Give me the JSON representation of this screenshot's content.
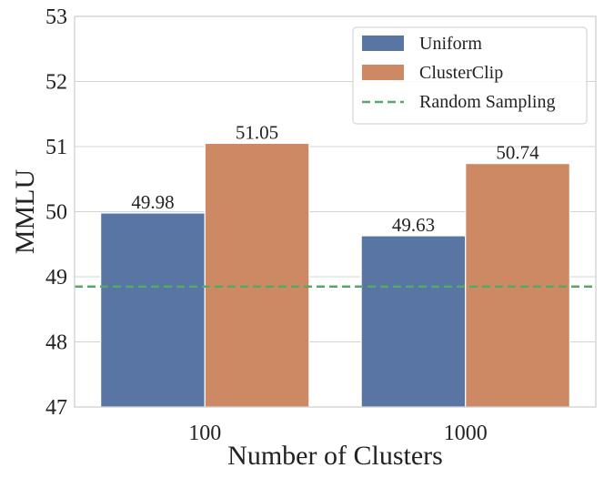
{
  "chart_data": {
    "type": "bar",
    "title": "",
    "xlabel": "Number of Clusters",
    "ylabel": "MMLU",
    "categories": [
      "100",
      "1000"
    ],
    "series": [
      {
        "name": "Uniform",
        "values": [
          49.98,
          49.63
        ],
        "color": "#5875a4",
        "labels": [
          "49.98",
          "49.63"
        ]
      },
      {
        "name": "ClusterClip",
        "values": [
          51.05,
          50.74
        ],
        "color": "#cc8963",
        "labels": [
          "51.05",
          "50.74"
        ]
      }
    ],
    "reference_line": {
      "name": "Random Sampling",
      "value": 48.85,
      "color": "#55a868",
      "style": "dashed"
    },
    "ylim": [
      47,
      53
    ],
    "yticks": [
      "47",
      "48",
      "49",
      "50",
      "51",
      "52",
      "53"
    ],
    "grid": true,
    "legend_position": "top-right"
  }
}
